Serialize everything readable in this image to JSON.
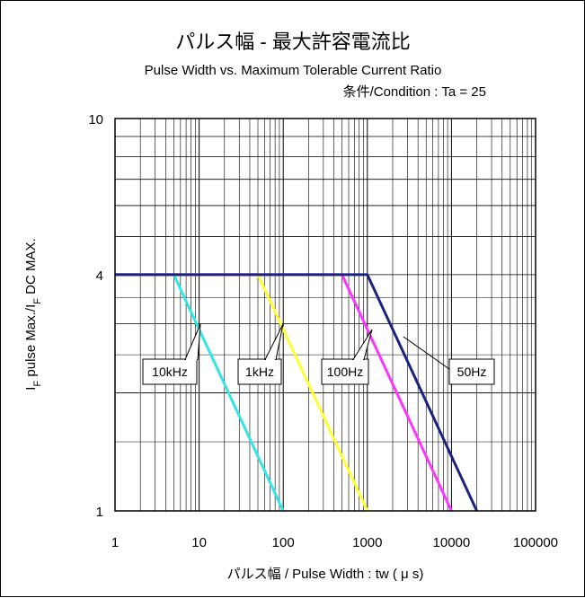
{
  "chart_data": {
    "type": "line",
    "title": "パルス幅 - 最大許容電流比",
    "subtitle": "Pulse Width vs. Maximum Tolerable Current  Ratio",
    "condition": "条件/Condition : Ta = 25",
    "xlabel": "パルス幅 / Pulse Width : tw ( μ s)",
    "ylabel_parts": {
      "p1": "I",
      "sub1": "F",
      "p2": " pulse Max./I",
      "sub2": "F",
      "p3": " DC MAX."
    },
    "x_scale": "log",
    "y_scale": "log",
    "xlim": [
      1,
      100000
    ],
    "ylim": [
      1,
      10
    ],
    "grid": true,
    "x_ticks": [
      {
        "value": 1,
        "label": "1"
      },
      {
        "value": 10,
        "label": "10"
      },
      {
        "value": 100,
        "label": "100"
      },
      {
        "value": 1000,
        "label": "1000"
      },
      {
        "value": 10000,
        "label": "10000"
      },
      {
        "value": 100000,
        "label": "100000"
      }
    ],
    "y_ticks": [
      {
        "value": 1,
        "label": "1"
      },
      {
        "value": 4,
        "label": "4"
      },
      {
        "value": 10,
        "label": "10"
      }
    ],
    "series": [
      {
        "name": "10kHz",
        "color": "#33e6e6",
        "points": [
          [
            1,
            4
          ],
          [
            5,
            4
          ],
          [
            100,
            1
          ]
        ]
      },
      {
        "name": "1kHz",
        "color": "#ffff33",
        "points": [
          [
            1,
            4
          ],
          [
            50,
            4
          ],
          [
            1000,
            1
          ]
        ]
      },
      {
        "name": "100Hz",
        "color": "#ff33ff",
        "points": [
          [
            1,
            4
          ],
          [
            500,
            4
          ],
          [
            10000,
            1
          ]
        ]
      },
      {
        "name": "50Hz",
        "color": "#1a237e",
        "points": [
          [
            1,
            4
          ],
          [
            1000,
            4
          ],
          [
            20000,
            1
          ]
        ]
      }
    ]
  }
}
